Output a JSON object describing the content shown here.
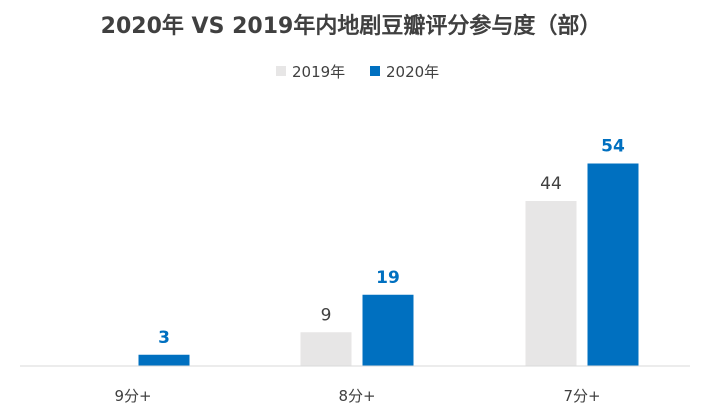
{
  "chart_data": {
    "type": "bar",
    "title": "2020年 VS 2019年内地剧豆瓣评分参与度（部）",
    "categories": [
      "9分+",
      "8分+",
      "7分+"
    ],
    "series": [
      {
        "name": "2019年",
        "values": [
          0,
          9,
          44
        ],
        "color": "#E7E6E6",
        "show_labels": [
          false,
          true,
          true
        ]
      },
      {
        "name": "2020年",
        "values": [
          3,
          19,
          54
        ],
        "color": "#0070C0",
        "show_labels": [
          true,
          true,
          true
        ]
      }
    ],
    "ylim": [
      0,
      60
    ],
    "grid": false,
    "legend": "top-center"
  }
}
